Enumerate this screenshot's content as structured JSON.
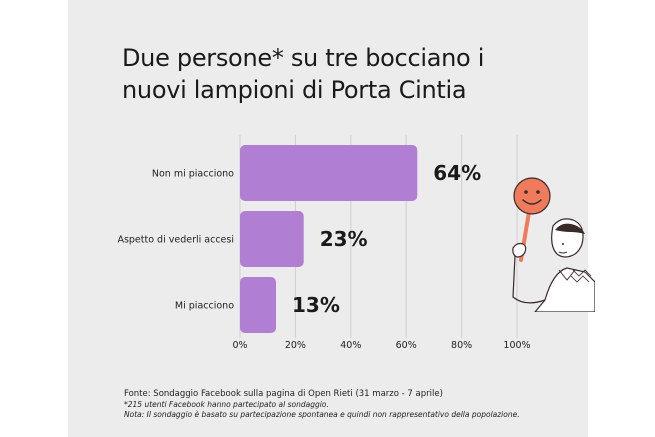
{
  "title": "Due persone* su tre bocciano i nuovi lampioni di Porta Cintia",
  "chart_data": {
    "type": "bar",
    "orientation": "horizontal",
    "categories": [
      "Non mi piacciono",
      "Aspetto di vederli accesi",
      "Mi piacciono"
    ],
    "values": [
      64,
      23,
      13
    ],
    "value_labels": [
      "64%",
      "23%",
      "13%"
    ],
    "xlim": [
      0,
      100
    ],
    "xticks": [
      0,
      20,
      40,
      60,
      80,
      100
    ],
    "xtick_labels": [
      "0%",
      "20%",
      "40%",
      "60%",
      "80%",
      "100%"
    ],
    "grid": "vertical",
    "bar_color": "#b07fd4"
  },
  "footer": {
    "source": "Fonte: Sondaggio Facebook sulla pagina di Open Rieti (31 marzo - 7 aprile)",
    "note1": "*215 utenti Facebook hanno partecipato al sondaggio.",
    "note2": "Nota: Il sondaggio è basato su partecipazione spontanea e quindi non rappresentativo della popolazione."
  },
  "illustration": {
    "name": "person-holding-smiley-sign",
    "accent_color": "#f07a5c"
  }
}
